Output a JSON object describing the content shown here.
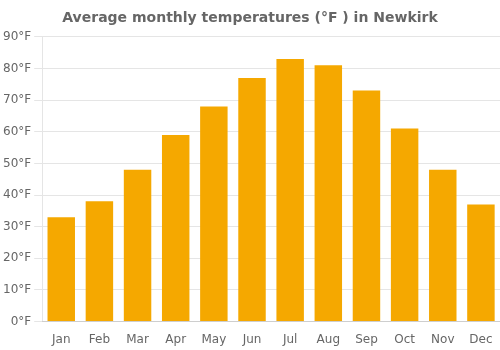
{
  "chart_data": {
    "type": "bar",
    "title": "Average monthly temperatures (°F ) in Newkirk",
    "categories": [
      "Jan",
      "Feb",
      "Mar",
      "Apr",
      "May",
      "Jun",
      "Jul",
      "Aug",
      "Sep",
      "Oct",
      "Nov",
      "Dec"
    ],
    "values": [
      33,
      38,
      48,
      59,
      68,
      77,
      83,
      81,
      73,
      61,
      48,
      37
    ],
    "color": "#F5A800",
    "ylim": [
      0,
      90
    ],
    "yticks": [
      {
        "value": 0,
        "label": "0°F"
      },
      {
        "value": 10,
        "label": "10°F"
      },
      {
        "value": 20,
        "label": "20°F"
      },
      {
        "value": 30,
        "label": "30°F"
      },
      {
        "value": 40,
        "label": "40°F"
      },
      {
        "value": 50,
        "label": "50°F"
      },
      {
        "value": 60,
        "label": "60°F"
      },
      {
        "value": 70,
        "label": "70°F"
      },
      {
        "value": 80,
        "label": "80°F"
      },
      {
        "value": 90,
        "label": "90°F"
      }
    ],
    "grid": true
  }
}
